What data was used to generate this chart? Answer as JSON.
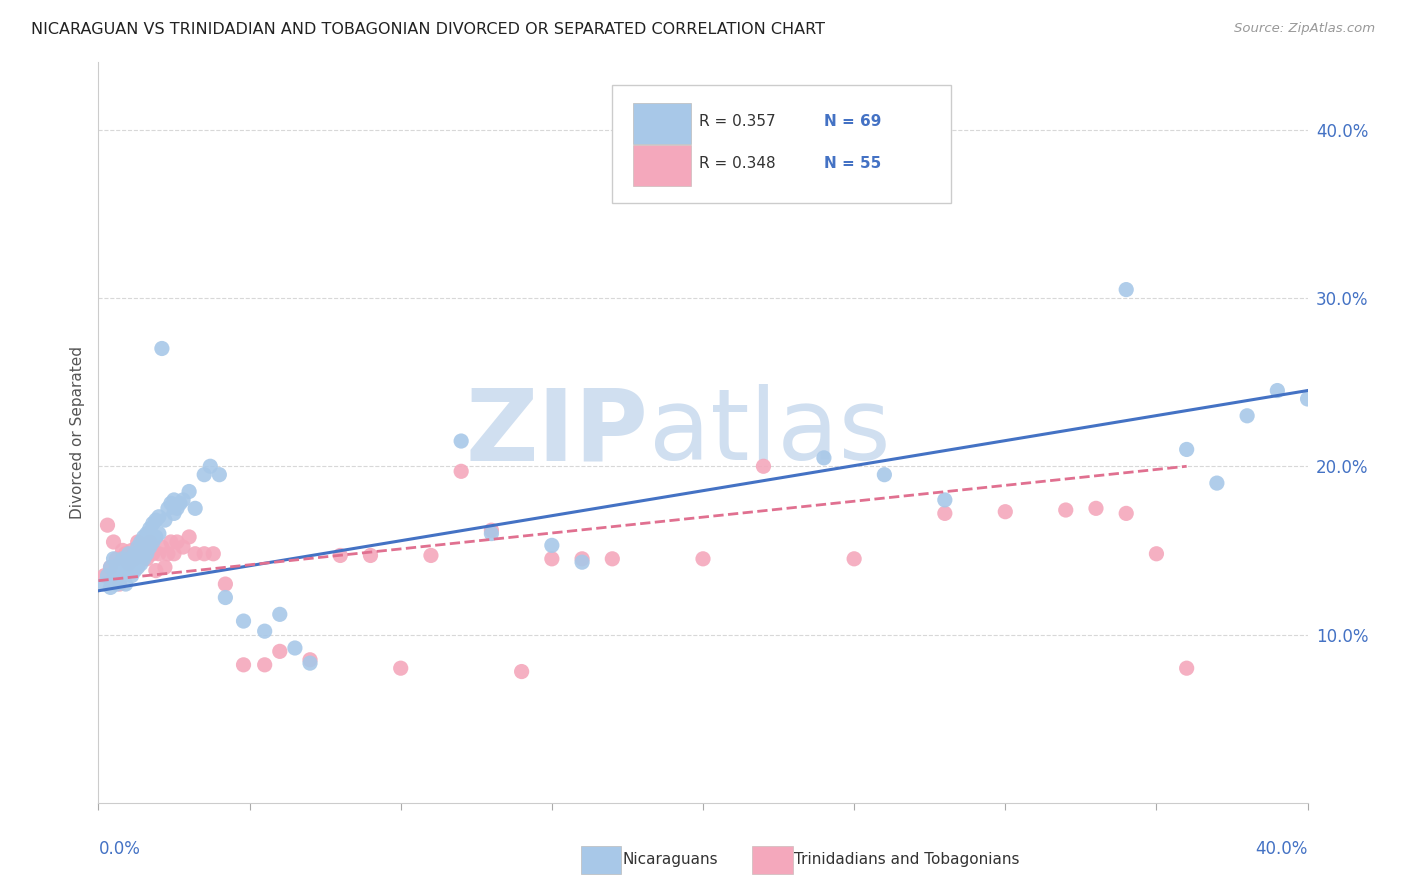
{
  "title": "NICARAGUAN VS TRINIDADIAN AND TOBAGONIAN DIVORCED OR SEPARATED CORRELATION CHART",
  "source": "Source: ZipAtlas.com",
  "ylabel": "Divorced or Separated",
  "ytick_values": [
    0.1,
    0.2,
    0.3,
    0.4
  ],
  "xlim": [
    0.0,
    0.4
  ],
  "ylim": [
    0.0,
    0.44
  ],
  "legend_blue_R": "R = 0.357",
  "legend_blue_N": "N = 69",
  "legend_pink_R": "R = 0.348",
  "legend_pink_N": "N = 55",
  "blue_color": "#a8c8e8",
  "pink_color": "#f4a8bc",
  "blue_line_color": "#4472c4",
  "pink_line_color": "#e07090",
  "watermark_color": "#d0dff0",
  "blue_scatter_x": [
    0.002,
    0.003,
    0.004,
    0.004,
    0.005,
    0.005,
    0.006,
    0.006,
    0.007,
    0.007,
    0.008,
    0.008,
    0.009,
    0.009,
    0.01,
    0.01,
    0.011,
    0.011,
    0.012,
    0.012,
    0.013,
    0.013,
    0.014,
    0.014,
    0.015,
    0.015,
    0.016,
    0.016,
    0.017,
    0.017,
    0.018,
    0.018,
    0.019,
    0.019,
    0.02,
    0.02,
    0.021,
    0.022,
    0.023,
    0.024,
    0.025,
    0.025,
    0.026,
    0.027,
    0.028,
    0.03,
    0.032,
    0.035,
    0.037,
    0.04,
    0.042,
    0.048,
    0.055,
    0.06,
    0.065,
    0.07,
    0.12,
    0.13,
    0.15,
    0.16,
    0.24,
    0.26,
    0.28,
    0.34,
    0.36,
    0.37,
    0.38,
    0.39,
    0.4
  ],
  "blue_scatter_y": [
    0.13,
    0.135,
    0.128,
    0.14,
    0.133,
    0.145,
    0.13,
    0.14,
    0.133,
    0.142,
    0.135,
    0.145,
    0.13,
    0.143,
    0.138,
    0.148,
    0.135,
    0.145,
    0.138,
    0.148,
    0.14,
    0.152,
    0.142,
    0.155,
    0.145,
    0.158,
    0.148,
    0.16,
    0.152,
    0.163,
    0.155,
    0.166,
    0.158,
    0.168,
    0.16,
    0.17,
    0.27,
    0.168,
    0.175,
    0.178,
    0.18,
    0.172,
    0.175,
    0.178,
    0.18,
    0.185,
    0.175,
    0.195,
    0.2,
    0.195,
    0.122,
    0.108,
    0.102,
    0.112,
    0.092,
    0.083,
    0.215,
    0.16,
    0.153,
    0.143,
    0.205,
    0.195,
    0.18,
    0.305,
    0.21,
    0.19,
    0.23,
    0.245,
    0.24
  ],
  "pink_scatter_x": [
    0.002,
    0.003,
    0.004,
    0.005,
    0.006,
    0.007,
    0.008,
    0.009,
    0.01,
    0.011,
    0.012,
    0.013,
    0.014,
    0.015,
    0.016,
    0.017,
    0.018,
    0.019,
    0.02,
    0.021,
    0.022,
    0.023,
    0.024,
    0.025,
    0.026,
    0.028,
    0.03,
    0.032,
    0.035,
    0.038,
    0.042,
    0.048,
    0.055,
    0.06,
    0.07,
    0.08,
    0.09,
    0.1,
    0.11,
    0.12,
    0.13,
    0.14,
    0.15,
    0.16,
    0.17,
    0.2,
    0.22,
    0.25,
    0.28,
    0.3,
    0.32,
    0.33,
    0.34,
    0.35,
    0.36
  ],
  "pink_scatter_y": [
    0.135,
    0.165,
    0.14,
    0.155,
    0.145,
    0.13,
    0.15,
    0.148,
    0.142,
    0.15,
    0.145,
    0.155,
    0.148,
    0.152,
    0.145,
    0.155,
    0.148,
    0.138,
    0.148,
    0.152,
    0.14,
    0.148,
    0.155,
    0.148,
    0.155,
    0.152,
    0.158,
    0.148,
    0.148,
    0.148,
    0.13,
    0.082,
    0.082,
    0.09,
    0.085,
    0.147,
    0.147,
    0.08,
    0.147,
    0.197,
    0.162,
    0.078,
    0.145,
    0.145,
    0.145,
    0.145,
    0.2,
    0.145,
    0.172,
    0.173,
    0.174,
    0.175,
    0.172,
    0.148,
    0.08
  ],
  "blue_line_x": [
    0.0,
    0.4
  ],
  "blue_line_y": [
    0.126,
    0.245
  ],
  "pink_line_x": [
    0.0,
    0.36
  ],
  "pink_line_y": [
    0.132,
    0.2
  ],
  "background_color": "#ffffff",
  "grid_color": "#d8d8d8"
}
